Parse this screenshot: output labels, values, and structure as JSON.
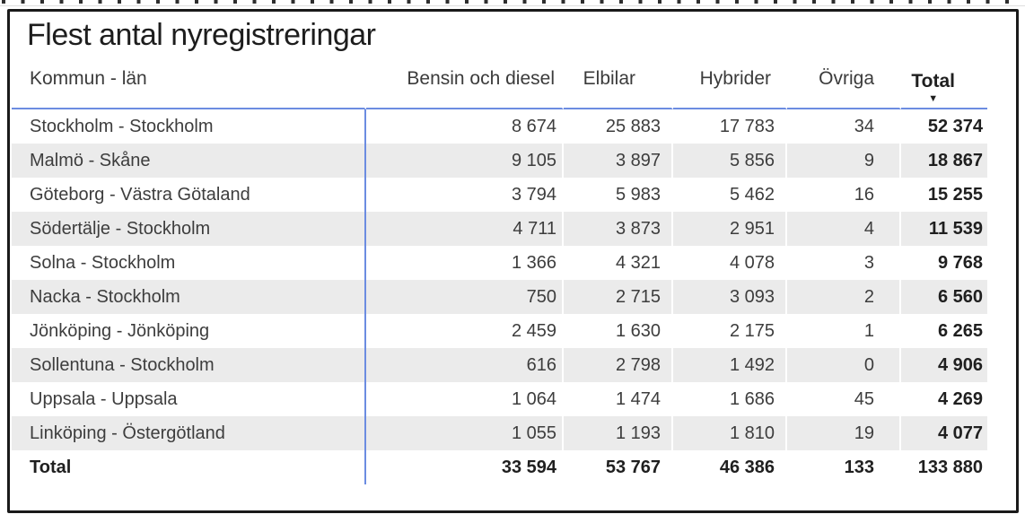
{
  "title": "Flest antal nyregistreringar",
  "icons": {
    "sort_descending": "▼"
  },
  "colors": {
    "accent_blue": "#6c8ce1",
    "row_stripe": "#ebebeb",
    "frame_border": "#1a1a1a",
    "text": "#3d3d3d",
    "text_strong": "#1f1f1f"
  },
  "table": {
    "columns": [
      {
        "key": "kommun-lan",
        "label": "Kommun - län"
      },
      {
        "key": "bensin-och-diesel",
        "label": "Bensin och diesel"
      },
      {
        "key": "elbilar",
        "label": "Elbilar"
      },
      {
        "key": "hybrider",
        "label": "Hybrider"
      },
      {
        "key": "ovriga",
        "label": "Övriga"
      },
      {
        "key": "total",
        "label": "Total",
        "sorted": "descending"
      }
    ],
    "rows": [
      [
        "Stockholm - Stockholm",
        "8 674",
        "25 883",
        "17 783",
        "34",
        "52 374"
      ],
      [
        "Malmö - Skåne",
        "9 105",
        "3 897",
        "5 856",
        "9",
        "18 867"
      ],
      [
        "Göteborg - Västra Götaland",
        "3 794",
        "5 983",
        "5 462",
        "16",
        "15 255"
      ],
      [
        "Södertälje - Stockholm",
        "4 711",
        "3 873",
        "2 951",
        "4",
        "11 539"
      ],
      [
        "Solna - Stockholm",
        "1 366",
        "4 321",
        "4 078",
        "3",
        "9 768"
      ],
      [
        "Nacka - Stockholm",
        "750",
        "2 715",
        "3 093",
        "2",
        "6 560"
      ],
      [
        "Jönköping - Jönköping",
        "2 459",
        "1 630",
        "2 175",
        "1",
        "6 265"
      ],
      [
        "Sollentuna - Stockholm",
        "616",
        "2 798",
        "1 492",
        "0",
        "4 906"
      ],
      [
        "Uppsala - Uppsala",
        "1 064",
        "1 474",
        "1 686",
        "45",
        "4 269"
      ],
      [
        "Linköping - Östergötland",
        "1 055",
        "1 193",
        "1 810",
        "19",
        "4 077"
      ]
    ],
    "total_row": [
      "Total",
      "33 594",
      "53 767",
      "46 386",
      "133",
      "133 880"
    ]
  },
  "chart_data": {
    "type": "table",
    "title": "Flest antal nyregistreringar",
    "columns": [
      "Kommun - län",
      "Bensin och diesel",
      "Elbilar",
      "Hybrider",
      "Övriga",
      "Total"
    ],
    "sort": {
      "column": "Total",
      "direction": "descending"
    },
    "rows": [
      {
        "kommun_lan": "Stockholm - Stockholm",
        "bensin_och_diesel": 8674,
        "elbilar": 25883,
        "hybrider": 17783,
        "ovriga": 34,
        "total": 52374
      },
      {
        "kommun_lan": "Malmö - Skåne",
        "bensin_och_diesel": 9105,
        "elbilar": 3897,
        "hybrider": 5856,
        "ovriga": 9,
        "total": 18867
      },
      {
        "kommun_lan": "Göteborg - Västra Götaland",
        "bensin_och_diesel": 3794,
        "elbilar": 5983,
        "hybrider": 5462,
        "ovriga": 16,
        "total": 15255
      },
      {
        "kommun_lan": "Södertälje - Stockholm",
        "bensin_och_diesel": 4711,
        "elbilar": 3873,
        "hybrider": 2951,
        "ovriga": 4,
        "total": 11539
      },
      {
        "kommun_lan": "Solna - Stockholm",
        "bensin_och_diesel": 1366,
        "elbilar": 4321,
        "hybrider": 4078,
        "ovriga": 3,
        "total": 9768
      },
      {
        "kommun_lan": "Nacka - Stockholm",
        "bensin_och_diesel": 750,
        "elbilar": 2715,
        "hybrider": 3093,
        "ovriga": 2,
        "total": 6560
      },
      {
        "kommun_lan": "Jönköping - Jönköping",
        "bensin_och_diesel": 2459,
        "elbilar": 1630,
        "hybrider": 2175,
        "ovriga": 1,
        "total": 6265
      },
      {
        "kommun_lan": "Sollentuna - Stockholm",
        "bensin_och_diesel": 616,
        "elbilar": 2798,
        "hybrider": 1492,
        "ovriga": 0,
        "total": 4906
      },
      {
        "kommun_lan": "Uppsala - Uppsala",
        "bensin_och_diesel": 1064,
        "elbilar": 1474,
        "hybrider": 1686,
        "ovriga": 45,
        "total": 4269
      },
      {
        "kommun_lan": "Linköping - Östergötland",
        "bensin_och_diesel": 1055,
        "elbilar": 1193,
        "hybrider": 1810,
        "ovriga": 19,
        "total": 4077
      }
    ],
    "totals": {
      "bensin_och_diesel": 33594,
      "elbilar": 53767,
      "hybrider": 46386,
      "ovriga": 133,
      "total": 133880
    }
  }
}
